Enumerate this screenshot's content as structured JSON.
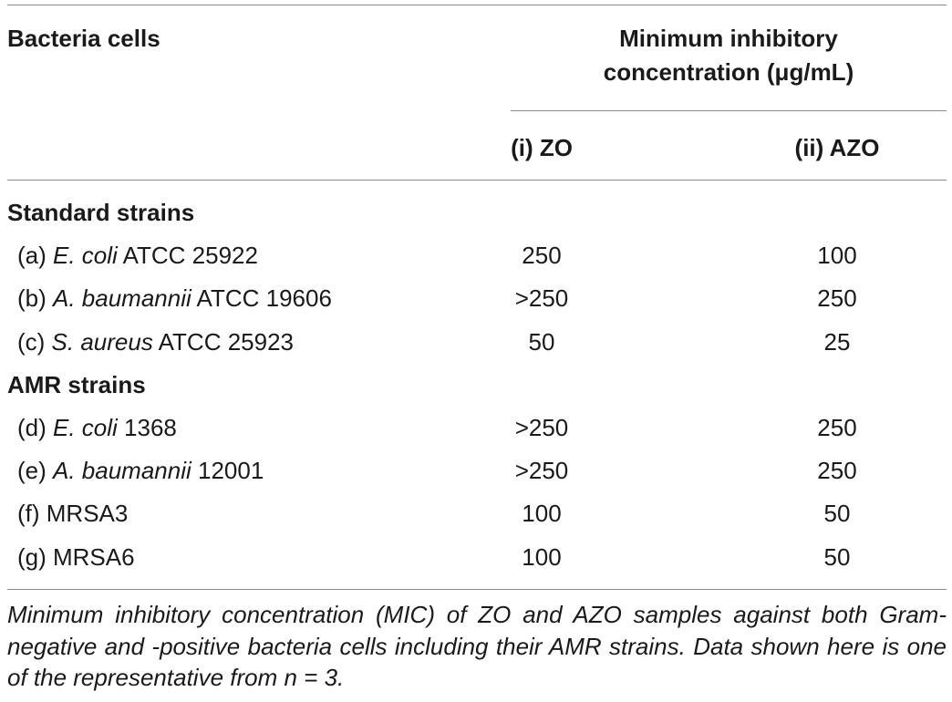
{
  "table": {
    "header": {
      "col1": "Bacteria cells",
      "group_line1": "Minimum inhibitory",
      "group_line2": "concentration (μg/mL)",
      "col2": "(i) ZO",
      "col3": "(ii) AZO"
    },
    "sections": [
      {
        "title": "Standard strains",
        "rows": [
          {
            "prefix": "(a) ",
            "species": "E. coli",
            "suffix": " ATCC 25922",
            "zo": "250",
            "azo": "100"
          },
          {
            "prefix": "(b) ",
            "species": "A. baumannii",
            "suffix": " ATCC 19606",
            "zo": ">250",
            "azo": "250"
          },
          {
            "prefix": "(c) ",
            "species": "S. aureus",
            "suffix": " ATCC 25923",
            "zo": "50",
            "azo": "25"
          }
        ]
      },
      {
        "title": "AMR strains",
        "rows": [
          {
            "prefix": "(d) ",
            "species": "E. coli",
            "suffix": " 1368",
            "zo": ">250",
            "azo": "250"
          },
          {
            "prefix": "(e) ",
            "species": "A. baumannii",
            "suffix": " 12001",
            "zo": ">250",
            "azo": "250"
          },
          {
            "prefix": "(f) MRSA3",
            "species": "",
            "suffix": "",
            "zo": "100",
            "azo": "50"
          },
          {
            "prefix": "(g) MRSA6",
            "species": "",
            "suffix": "",
            "zo": "100",
            "azo": "50"
          }
        ]
      }
    ]
  },
  "caption": "Minimum inhibitory concentration (MIC) of ZO and AZO samples against both Gram-negative and -positive bacteria cells including their AMR strains. Data shown here is one of the representative from n = 3."
}
